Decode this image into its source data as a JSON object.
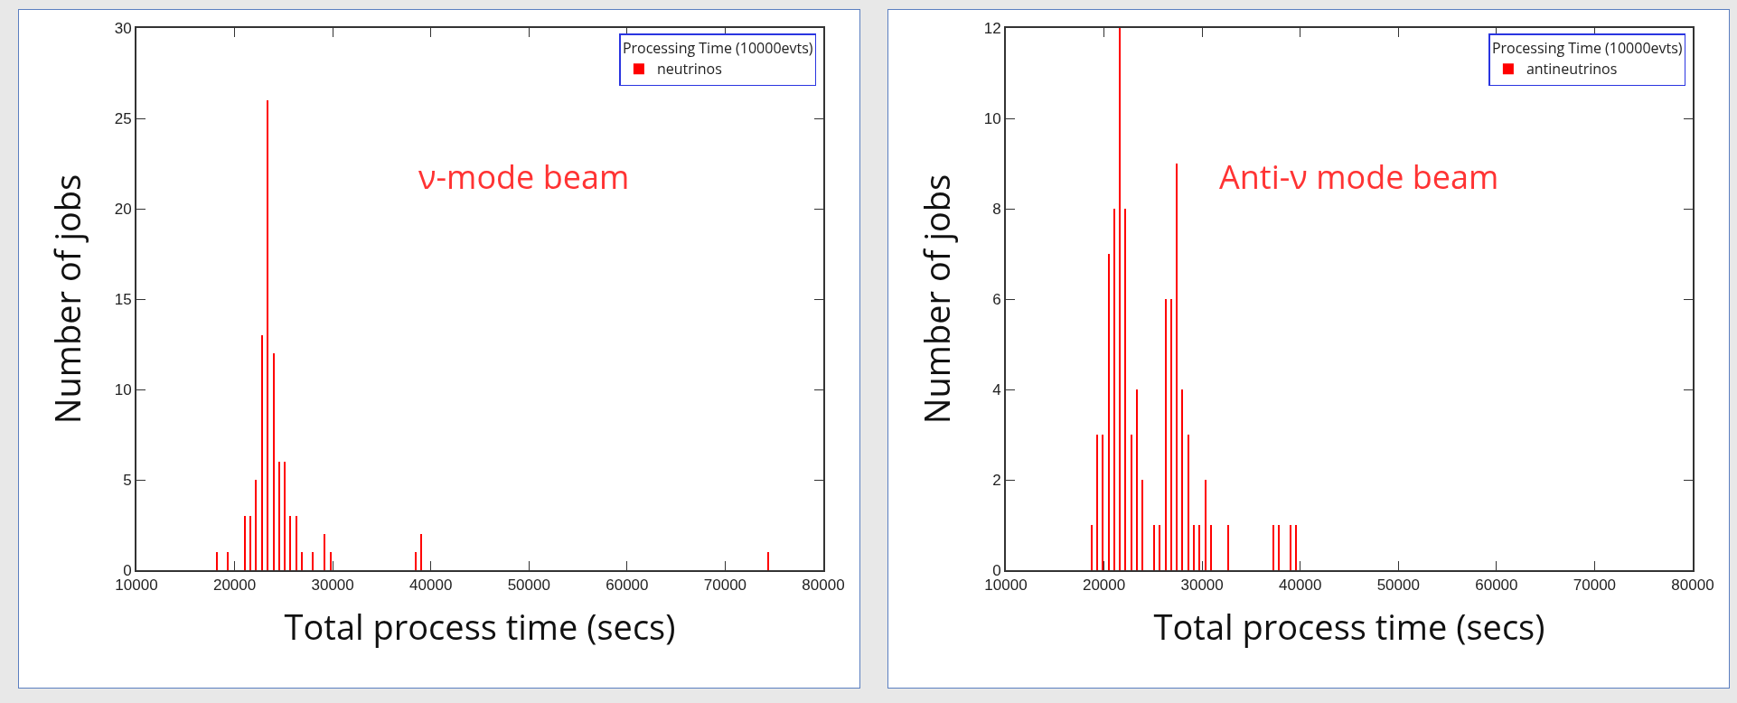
{
  "chart_data": [
    {
      "type": "bar",
      "xlabel": "Total process time (secs)",
      "ylabel": "Number of jobs",
      "legend_title": "Processing Time (10000evts)",
      "legend": "top right",
      "grid": false,
      "annotations": [
        "ν-mode beam"
      ],
      "xlim": [
        10000,
        80000
      ],
      "xticks": [
        10000,
        20000,
        30000,
        40000,
        50000,
        60000,
        70000,
        80000
      ],
      "ylim": [
        0,
        30
      ],
      "yticks": [
        0,
        5,
        10,
        15,
        20,
        25,
        30
      ],
      "series": [
        {
          "name": "neutrinos",
          "color": "#ff0000",
          "x": [
            18160,
            19300,
            21070,
            21620,
            22200,
            22790,
            23380,
            23970,
            24560,
            25150,
            25700,
            26290,
            26880,
            28010,
            29190,
            29780,
            38460,
            39040,
            74410
          ],
          "values": [
            1,
            1,
            3,
            3,
            5,
            13,
            26,
            12,
            6,
            6,
            3,
            3,
            1,
            1,
            2,
            1,
            1,
            2,
            1
          ]
        }
      ]
    },
    {
      "type": "bar",
      "xlabel": "Total process time (secs)",
      "ylabel": "Number of jobs",
      "legend_title": "Processing Time (10000evts)",
      "legend": "top right",
      "grid": false,
      "annotations": [
        "Anti-ν mode beam"
      ],
      "xlim": [
        10000,
        80000
      ],
      "xticks": [
        10000,
        20000,
        30000,
        40000,
        50000,
        60000,
        70000,
        80000
      ],
      "ylim": [
        0,
        12
      ],
      "yticks": [
        0,
        2,
        4,
        6,
        8,
        10,
        12
      ],
      "series": [
        {
          "name": "antineutrinos",
          "color": "#ff0000",
          "x": [
            18750,
            19320,
            19890,
            20500,
            21070,
            21640,
            22210,
            22790,
            23360,
            23930,
            25110,
            25680,
            26290,
            26860,
            27430,
            28000,
            28570,
            29180,
            29750,
            30320,
            30890,
            32640,
            37290,
            37860,
            39000,
            39610
          ],
          "values": [
            1,
            3,
            3,
            7,
            8,
            12,
            8,
            3,
            4,
            2,
            1,
            1,
            6,
            6,
            9,
            4,
            3,
            1,
            1,
            2,
            1,
            1,
            1,
            1,
            1,
            1
          ]
        }
      ]
    }
  ]
}
